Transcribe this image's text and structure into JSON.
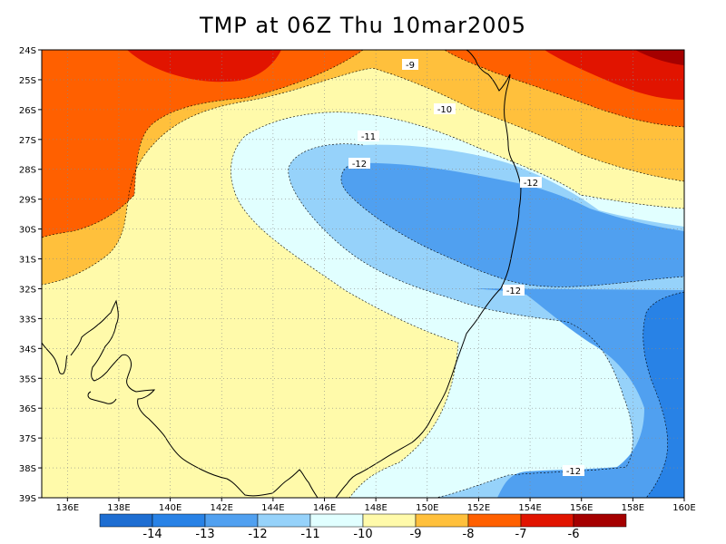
{
  "title": "TMP at 06Z Thu 10mar2005",
  "map": {
    "lat_ticks": [
      "24S",
      "25S",
      "26S",
      "27S",
      "28S",
      "29S",
      "30S",
      "31S",
      "32S",
      "33S",
      "34S",
      "35S",
      "36S",
      "37S",
      "38S",
      "39S"
    ],
    "lon_ticks": [
      "136E",
      "138E",
      "140E",
      "142E",
      "144E",
      "146E",
      "148E",
      "150E",
      "152E",
      "154E",
      "156E",
      "158E",
      "160E"
    ],
    "contour_labels": [
      {
        "text": "-9"
      },
      {
        "text": "-10"
      },
      {
        "text": "-11"
      },
      {
        "text": "-12"
      },
      {
        "text": "-12"
      },
      {
        "text": "-12"
      },
      {
        "text": "-12"
      }
    ]
  },
  "colorbar": {
    "colors": [
      "#1e6ed2",
      "#2882e6",
      "#50a0f0",
      "#96d2fa",
      "#e1ffff",
      "#fffaaa",
      "#ffc03c",
      "#ff6000",
      "#e11400",
      "#a50000"
    ],
    "labels": [
      "-14",
      "-13",
      "-12",
      "-11",
      "-10",
      "-9",
      "-8",
      "-7",
      "-6"
    ]
  },
  "chart_data": {
    "type": "heatmap",
    "title": "TMP at 06Z Thu 10mar2005",
    "variable": "TMP",
    "x_range": [
      "135E",
      "160E"
    ],
    "y_range": [
      "24S",
      "39S"
    ],
    "contour_levels": [
      -14,
      -13,
      -12,
      -11,
      -10,
      -9,
      -8,
      -7,
      -6
    ],
    "grid": true,
    "legend": "bottom colorbar"
  }
}
